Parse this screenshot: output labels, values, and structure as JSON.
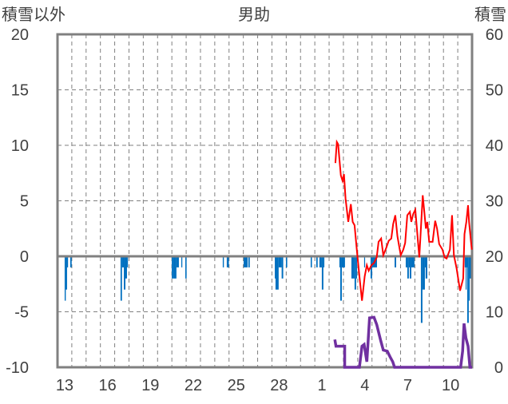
{
  "chart_data": {
    "type": "line",
    "title": "男助",
    "ylabel_left": "積雪以外",
    "ylabel_right": "積雪",
    "ylim_left": [
      -10,
      20
    ],
    "yticks_left": [
      20,
      15,
      10,
      5,
      0,
      -5,
      -10
    ],
    "ylim_right": [
      0,
      60
    ],
    "yticks_right": [
      60,
      50,
      40,
      30,
      20,
      10,
      0
    ],
    "x_range_days": [
      0,
      29
    ],
    "x_ticks": [
      {
        "day": 0.5,
        "label": "13"
      },
      {
        "day": 3.5,
        "label": "16"
      },
      {
        "day": 6.5,
        "label": "19"
      },
      {
        "day": 9.5,
        "label": "22"
      },
      {
        "day": 12.5,
        "label": "25"
      },
      {
        "day": 15.5,
        "label": "28"
      },
      {
        "day": 18.5,
        "label": "1"
      },
      {
        "day": 21.5,
        "label": "4"
      },
      {
        "day": 24.5,
        "label": "7"
      },
      {
        "day": 27.5,
        "label": "10"
      }
    ],
    "grid": true,
    "colors": {
      "precip": "#0070C0",
      "temperature": "#FF0000",
      "snow": "#7030A0",
      "frame": "#808080"
    },
    "precipitation_bars": [
      [
        0.5,
        0.58,
        -4
      ],
      [
        0.58,
        0.67,
        -3
      ],
      [
        0.67,
        0.73,
        -1
      ],
      [
        0.89,
        0.99,
        -1
      ],
      [
        4.41,
        4.51,
        -4
      ],
      [
        4.51,
        4.64,
        -1
      ],
      [
        4.64,
        4.75,
        -3
      ],
      [
        4.75,
        4.86,
        -2
      ],
      [
        4.86,
        4.92,
        -1
      ],
      [
        7.99,
        8.08,
        -2
      ],
      [
        8.08,
        8.32,
        -2
      ],
      [
        8.32,
        8.49,
        -1
      ],
      [
        8.66,
        8.73,
        -1
      ],
      [
        8.94,
        9.03,
        -2
      ],
      [
        11.56,
        11.64,
        -1
      ],
      [
        11.84,
        11.99,
        -1
      ],
      [
        13.02,
        13.3,
        -1
      ],
      [
        13.35,
        13.45,
        -1
      ],
      [
        15.2,
        15.25,
        -2
      ],
      [
        15.25,
        15.47,
        -3
      ],
      [
        15.47,
        15.68,
        -1
      ],
      [
        15.68,
        15.79,
        -2
      ],
      [
        15.98,
        16.07,
        -1
      ],
      [
        17.71,
        17.8,
        -1
      ],
      [
        18.1,
        18.2,
        -1
      ],
      [
        18.32,
        18.49,
        -1
      ],
      [
        18.49,
        18.6,
        -3
      ],
      [
        18.6,
        18.66,
        -1
      ],
      [
        19.72,
        19.78,
        -1
      ],
      [
        19.78,
        19.89,
        -4
      ],
      [
        19.89,
        20.11,
        -1
      ],
      [
        20.56,
        20.78,
        -2
      ],
      [
        20.78,
        20.89,
        -3
      ],
      [
        20.89,
        20.95,
        -2
      ],
      [
        21.45,
        21.51,
        -1
      ],
      [
        21.9,
        22.01,
        -2
      ],
      [
        22.01,
        22.35,
        -1
      ],
      [
        23.58,
        23.69,
        -1
      ],
      [
        24.36,
        24.47,
        -1
      ],
      [
        24.47,
        24.58,
        -2
      ],
      [
        24.58,
        24.64,
        -1
      ],
      [
        24.64,
        24.75,
        -2
      ],
      [
        24.75,
        24.97,
        -1
      ],
      [
        25.42,
        25.53,
        -6
      ],
      [
        25.53,
        25.7,
        -3
      ],
      [
        25.7,
        25.75,
        -1
      ],
      [
        25.75,
        25.87,
        -2
      ],
      [
        28.49,
        28.55,
        -1
      ],
      [
        28.55,
        28.6,
        -3
      ],
      [
        28.6,
        28.66,
        -1
      ],
      [
        28.66,
        28.77,
        -6
      ],
      [
        28.77,
        28.83,
        -4
      ],
      [
        28.83,
        28.94,
        -2
      ]
    ],
    "temperature": [
      [
        19.44,
        8.4
      ],
      [
        19.54,
        10.3
      ],
      [
        19.63,
        10.1
      ],
      [
        19.82,
        7.3
      ],
      [
        19.94,
        6.8
      ],
      [
        20.04,
        7.4
      ],
      [
        20.15,
        5.2
      ],
      [
        20.34,
        3.1
      ],
      [
        20.52,
        4.7
      ],
      [
        20.65,
        3.1
      ],
      [
        20.78,
        2.8
      ],
      [
        20.93,
        0.7
      ],
      [
        21.12,
        -1.8
      ],
      [
        21.3,
        -4.0
      ],
      [
        21.49,
        -1.8
      ],
      [
        21.64,
        -0.8
      ],
      [
        21.77,
        -1.3
      ],
      [
        21.96,
        -0.8
      ],
      [
        22.14,
        -0.6
      ],
      [
        22.33,
        -0.1
      ],
      [
        22.46,
        1.3
      ],
      [
        22.64,
        1.6
      ],
      [
        22.79,
        0.1
      ],
      [
        22.98,
        0.7
      ],
      [
        23.17,
        1.4
      ],
      [
        23.35,
        1.6
      ],
      [
        23.48,
        2.9
      ],
      [
        23.63,
        3.7
      ],
      [
        23.78,
        1.8
      ],
      [
        24.01,
        0.1
      ],
      [
        24.19,
        0.6
      ],
      [
        24.32,
        1.2
      ],
      [
        24.47,
        3.7
      ],
      [
        24.65,
        4.0
      ],
      [
        24.75,
        3.1
      ],
      [
        24.88,
        3.8
      ],
      [
        25.03,
        4.2
      ],
      [
        25.31,
        -0.1
      ],
      [
        25.55,
        5.5
      ],
      [
        25.77,
        2.5
      ],
      [
        25.87,
        3.1
      ],
      [
        26.0,
        1.3
      ],
      [
        26.24,
        1.3
      ],
      [
        26.42,
        3.2
      ],
      [
        26.55,
        2.5
      ],
      [
        26.7,
        1.1
      ],
      [
        26.93,
        0.6
      ],
      [
        27.08,
        -0.1
      ],
      [
        27.22,
        -0.2
      ],
      [
        27.45,
        0.6
      ],
      [
        27.6,
        3.7
      ],
      [
        27.73,
        0.1
      ],
      [
        27.92,
        -1.1
      ],
      [
        28.16,
        -3.1
      ],
      [
        28.38,
        -2.0
      ],
      [
        28.47,
        2.0
      ],
      [
        28.6,
        3.1
      ],
      [
        28.72,
        4.6
      ],
      [
        28.79,
        3.1
      ],
      [
        28.98,
        0.6
      ]
    ],
    "snow_depth": [
      [
        19.4,
        5.0
      ],
      [
        19.48,
        3.8
      ],
      [
        20.09,
        3.8
      ],
      [
        20.09,
        0
      ],
      [
        21.12,
        0
      ],
      [
        21.3,
        3.8
      ],
      [
        21.45,
        4.1
      ],
      [
        21.64,
        1.0
      ],
      [
        21.83,
        8.9
      ],
      [
        22.14,
        9.0
      ],
      [
        22.33,
        7.7
      ],
      [
        22.61,
        4.8
      ],
      [
        22.79,
        3.1
      ],
      [
        23.07,
        2.9
      ],
      [
        23.26,
        1.9
      ],
      [
        23.45,
        1.0
      ],
      [
        23.58,
        0
      ],
      [
        28.2,
        0
      ],
      [
        28.34,
        2.9
      ],
      [
        28.44,
        7.9
      ],
      [
        28.57,
        5.3
      ],
      [
        28.72,
        3.8
      ],
      [
        28.85,
        0
      ],
      [
        29.0,
        0
      ]
    ]
  }
}
